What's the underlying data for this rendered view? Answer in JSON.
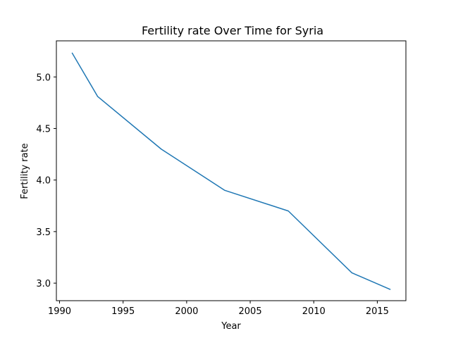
{
  "chart_data": {
    "type": "line",
    "title": "Fertility rate Over Time for Syria",
    "xlabel": "Year",
    "ylabel": "Fertility rate",
    "xlim": [
      1989.75,
      2017.25
    ],
    "ylim": [
      2.83,
      5.35
    ],
    "xticks": [
      1990,
      1995,
      2000,
      2005,
      2010,
      2015
    ],
    "yticks": [
      3.0,
      3.5,
      4.0,
      4.5,
      5.0
    ],
    "ytick_labels": [
      "3.0",
      "3.5",
      "4.0",
      "4.5",
      "5.0"
    ],
    "grid": false,
    "series": [
      {
        "color": "#1f77b4",
        "x": [
          1991,
          1993,
          1998,
          2003,
          2008,
          2013,
          2016
        ],
        "y": [
          5.23,
          4.81,
          4.3,
          3.9,
          3.7,
          3.1,
          2.94
        ]
      }
    ]
  }
}
